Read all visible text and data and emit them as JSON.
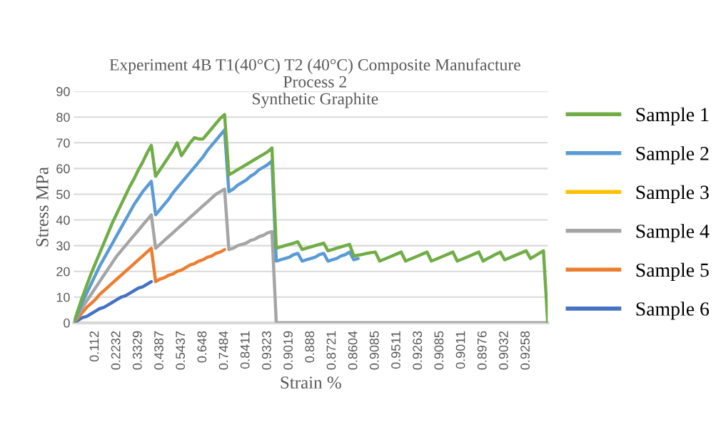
{
  "chart_data": {
    "type": "line",
    "title": "Experiment 4B T1(40°C) T2 (40°C) Composite Manufacture\nProcess 2\nSynthetic Graphite",
    "xlabel": "Strain %",
    "ylabel": "Stress MPa",
    "categories": [
      null,
      null,
      null,
      null,
      null,
      "0.112",
      null,
      null,
      null,
      null,
      "0.2232",
      null,
      null,
      null,
      null,
      "0.3329",
      null,
      null,
      null,
      null,
      "0.4387",
      null,
      null,
      null,
      null,
      "0.5437",
      null,
      null,
      null,
      null,
      "0.648",
      null,
      null,
      null,
      null,
      "0.7484",
      null,
      null,
      null,
      null,
      "0.8411",
      null,
      null,
      null,
      null,
      "0.9323",
      null,
      null,
      null,
      null,
      "0.9019",
      null,
      null,
      null,
      null,
      "0.888",
      null,
      null,
      null,
      null,
      "0.8721",
      null,
      null,
      null,
      null,
      "0.8604",
      null,
      null,
      null,
      null,
      "0.9085",
      null,
      null,
      null,
      null,
      "0.9511",
      null,
      null,
      null,
      null,
      "0.9263",
      null,
      null,
      null,
      null,
      "0.9085",
      null,
      null,
      null,
      null,
      "0.9011",
      null,
      null,
      null,
      null,
      "0.8976",
      null,
      null,
      null,
      null,
      "0.9032",
      null,
      null,
      null,
      null,
      "0.9258",
      null,
      null,
      null,
      null,
      null
    ],
    "ylim": [
      0,
      90
    ],
    "yticks": [
      0,
      10,
      20,
      30,
      40,
      50,
      60,
      70,
      80,
      90
    ],
    "grid": "y",
    "legend": "right",
    "marker": "none",
    "line_style": "solid",
    "series": [
      {
        "name": "Sample 1",
        "color": "#70ad47",
        "values": [
          0,
          5,
          10,
          14.5,
          19,
          23,
          27,
          31,
          35,
          39,
          42.5,
          46,
          49.5,
          53,
          56,
          59.5,
          62.5,
          66,
          69,
          57,
          59.5,
          62,
          64.5,
          67,
          70,
          65,
          67.5,
          70,
          72,
          71.5,
          71.5,
          73.5,
          75.5,
          77.5,
          79.5,
          81,
          57.5,
          58.5,
          59.5,
          60.5,
          61.5,
          62.5,
          63.5,
          64.5,
          65.5,
          66.5,
          68,
          29,
          29.5,
          30,
          30.5,
          31,
          31.5,
          28.5,
          29,
          29.5,
          30,
          30.5,
          31,
          28,
          28.5,
          29,
          29.5,
          30,
          30.5,
          26,
          26.3,
          26.6,
          27,
          27.3,
          27.5,
          24,
          24.7,
          25.4,
          26.1,
          26.8,
          27.5,
          24,
          24.7,
          25.4,
          26.1,
          26.8,
          27.5,
          24,
          24.7,
          25.4,
          26.1,
          26.8,
          27.5,
          24,
          24.7,
          25.4,
          26.1,
          26.8,
          27.5,
          24,
          25,
          25.8,
          26.7,
          27.5,
          24.5,
          25.2,
          25.9,
          26.6,
          27.3,
          28,
          25,
          26,
          27,
          28,
          0
        ]
      },
      {
        "name": "Sample 2",
        "color": "#5b9bd5",
        "values": [
          0,
          4,
          8,
          11.5,
          15,
          18.5,
          22,
          25,
          28,
          31,
          34,
          37,
          40,
          43,
          46,
          48.5,
          51,
          53,
          55,
          42,
          44,
          46,
          48,
          50.5,
          52.5,
          54.5,
          56.5,
          58.5,
          60.5,
          62.5,
          64.5,
          67,
          69,
          71,
          73,
          75,
          51,
          52,
          53.5,
          54.5,
          55.5,
          57,
          58,
          59.5,
          60.5,
          61.5,
          63,
          24,
          24.5,
          25,
          25.5,
          26.5,
          27,
          24,
          24.5,
          25,
          25.5,
          26.5,
          27,
          24,
          24.5,
          25,
          26,
          26.5,
          27.5,
          24.5,
          25,
          null,
          null,
          null,
          null,
          null,
          null,
          null,
          null,
          null,
          null,
          null,
          null,
          null,
          null,
          null,
          null,
          null,
          null,
          null,
          null,
          null,
          null,
          null,
          null,
          null,
          null,
          null,
          null,
          null,
          null,
          null,
          null,
          null,
          null,
          null,
          null,
          null,
          null,
          null,
          null,
          null,
          null,
          null,
          null
        ]
      },
      {
        "name": "Sample 3",
        "color": "#ffc000",
        "values": [
          null,
          null,
          null,
          null,
          null,
          null,
          null,
          null,
          null,
          null,
          null,
          null,
          null,
          null,
          null,
          null,
          null,
          null,
          null,
          null,
          null,
          null,
          null,
          null,
          null,
          null,
          null,
          null,
          null,
          null,
          null,
          null,
          null,
          null,
          null,
          null,
          null,
          null,
          null,
          null,
          null,
          null,
          null,
          null,
          null,
          null,
          null,
          null,
          null,
          null,
          null,
          null,
          null,
          null,
          null,
          null,
          null,
          null,
          null,
          null,
          null,
          null,
          null,
          null,
          null,
          null,
          null,
          null,
          null,
          null,
          null,
          null,
          null,
          null,
          null,
          null,
          null,
          null,
          null,
          null,
          null,
          null,
          null,
          null,
          null,
          null,
          null,
          null,
          null,
          null,
          null,
          null,
          null,
          null,
          null,
          null,
          null,
          null,
          null,
          null,
          null,
          null,
          null,
          null,
          null,
          null,
          null,
          null,
          null,
          null,
          null
        ]
      },
      {
        "name": "Sample 4",
        "color": "#a5a5a5",
        "values": [
          0,
          3,
          6,
          8.5,
          11,
          13.5,
          16,
          18.5,
          21,
          23.5,
          26,
          28,
          30,
          32,
          34,
          36,
          38,
          40,
          42,
          29,
          30.5,
          32,
          33.5,
          35,
          36.5,
          38,
          39.5,
          41,
          42.5,
          44,
          45.5,
          47,
          48.5,
          50,
          51,
          52,
          28.5,
          29,
          30,
          30.5,
          31,
          32,
          32.5,
          33.5,
          34,
          35,
          35.5,
          0,
          0,
          0,
          0,
          0,
          0,
          0,
          0,
          0,
          0,
          0,
          0,
          0,
          0,
          0,
          0,
          0,
          0,
          0,
          0,
          0,
          0,
          0,
          0,
          0,
          0,
          0,
          0,
          0,
          0,
          0,
          0,
          0,
          0,
          0,
          0,
          0,
          0,
          0,
          0,
          0,
          0,
          0,
          0,
          0,
          0,
          0,
          0,
          0,
          0,
          0,
          0,
          0,
          0,
          0,
          0,
          0,
          0,
          0,
          0,
          0,
          0,
          0,
          0
        ]
      },
      {
        "name": "Sample 5",
        "color": "#ed7d31",
        "values": [
          0,
          2,
          4,
          6,
          7.5,
          9,
          11,
          12.5,
          14,
          15.5,
          17,
          18.5,
          20,
          21.5,
          23,
          24.5,
          26,
          27.5,
          29,
          16,
          17,
          17.5,
          18.5,
          19,
          20,
          20.5,
          21.5,
          22.5,
          23,
          24,
          24.5,
          25.5,
          26,
          27,
          27.5,
          28.5,
          null,
          null,
          null,
          null,
          null,
          null,
          null,
          null,
          null,
          null,
          null,
          null,
          null,
          null,
          null,
          null,
          null,
          null,
          null,
          null,
          null,
          null,
          null,
          null,
          null,
          null,
          null,
          null,
          null,
          null,
          null,
          null,
          null,
          null,
          null,
          null,
          null,
          null,
          null,
          null,
          null,
          null,
          null,
          null,
          null,
          null,
          null,
          null,
          null,
          null,
          null,
          null,
          null,
          null,
          null,
          null,
          null,
          null,
          null,
          null,
          null,
          null,
          null,
          null,
          null,
          null,
          null,
          null,
          null,
          null,
          null,
          null,
          null,
          null,
          null
        ]
      },
      {
        "name": "Sample 6",
        "color": "#4472c4",
        "values": [
          0,
          1,
          2,
          2.5,
          3.5,
          4.5,
          5.5,
          6,
          7,
          8,
          9,
          10,
          10.5,
          11.5,
          12.5,
          13.5,
          14,
          15,
          16,
          null,
          null,
          null,
          null,
          null,
          null,
          null,
          null,
          null,
          null,
          null,
          null,
          null,
          null,
          null,
          null,
          null,
          null,
          null,
          null,
          null,
          null,
          null,
          null,
          null,
          null,
          null,
          null,
          null,
          null,
          null,
          null,
          null,
          null,
          null,
          null,
          null,
          null,
          null,
          null,
          null,
          null,
          null,
          null,
          null,
          null,
          null,
          null,
          null,
          null,
          null,
          null,
          null,
          null,
          null,
          null,
          null,
          null,
          null,
          null,
          null,
          null,
          null,
          null,
          null,
          null,
          null,
          null,
          null,
          null,
          null,
          null,
          null,
          null,
          null,
          null,
          null,
          null,
          null,
          null,
          null,
          null,
          null,
          null,
          null,
          null,
          null,
          null,
          null,
          null,
          null,
          null
        ]
      }
    ]
  }
}
